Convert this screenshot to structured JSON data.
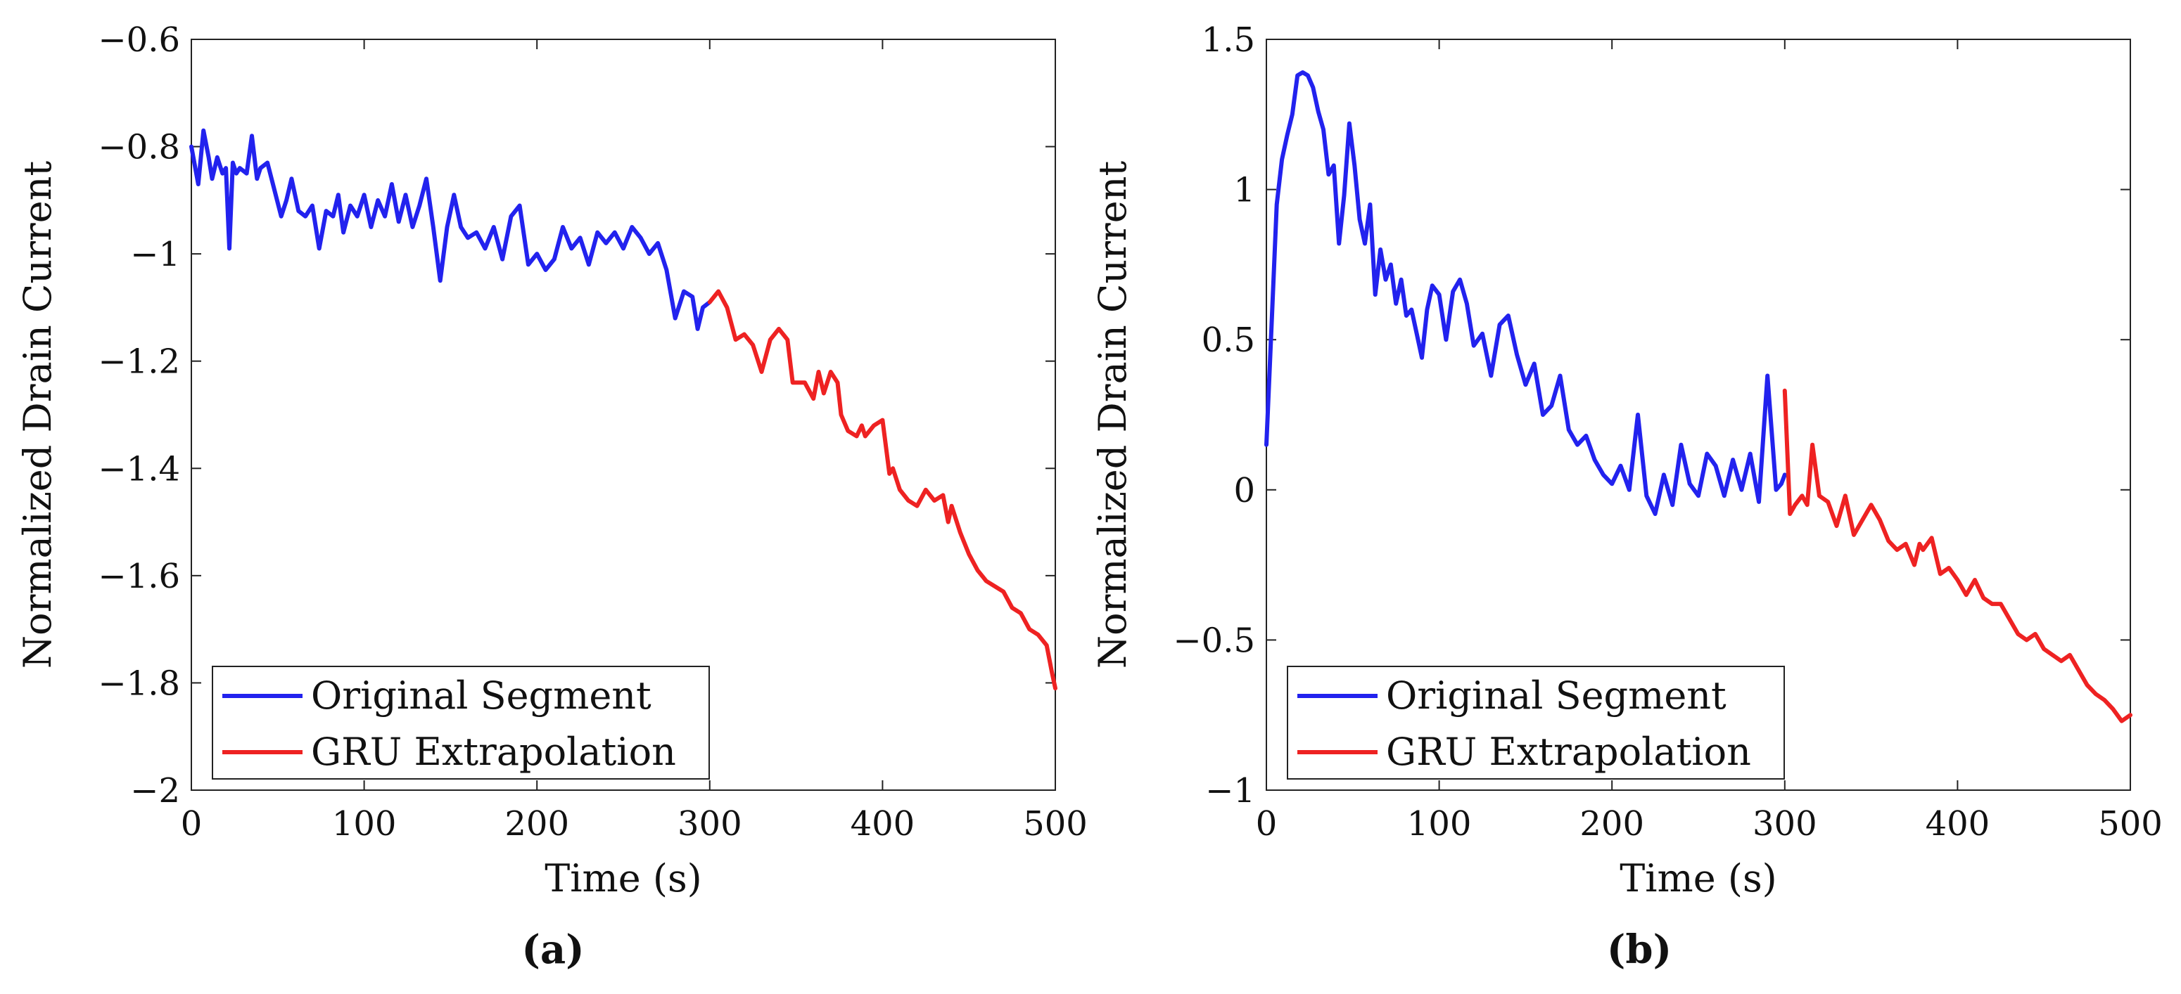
{
  "chart_data": [
    {
      "type": "line",
      "panel": "a",
      "caption": "(a)",
      "xlabel": "Time (s)",
      "ylabel": "Normalized Drain Current",
      "xlim": [
        0,
        500
      ],
      "ylim": [
        -2,
        -0.6
      ],
      "xticks": [
        0,
        100,
        200,
        300,
        400,
        500
      ],
      "yticks": [
        -2,
        -1.8,
        -1.6,
        -1.4,
        -1.2,
        -1,
        -0.8,
        -0.6
      ],
      "grid": false,
      "legend_position": "bottom-left",
      "series": [
        {
          "name": "Original Segment",
          "color": "#2222ee",
          "x": [
            0,
            4,
            7,
            10,
            12,
            15,
            18,
            20,
            22,
            24,
            26,
            28,
            32,
            35,
            38,
            40,
            44,
            48,
            52,
            55,
            58,
            62,
            66,
            70,
            74,
            78,
            82,
            85,
            88,
            92,
            96,
            100,
            104,
            108,
            112,
            116,
            120,
            124,
            128,
            132,
            136,
            140,
            144,
            148,
            152,
            156,
            160,
            165,
            170,
            175,
            180,
            185,
            190,
            195,
            200,
            205,
            210,
            215,
            220,
            225,
            230,
            235,
            240,
            245,
            250,
            255,
            260,
            265,
            270,
            275,
            280,
            285,
            290,
            293,
            296,
            300
          ],
          "y": [
            -0.8,
            -0.87,
            -0.77,
            -0.82,
            -0.86,
            -0.82,
            -0.85,
            -0.84,
            -0.99,
            -0.83,
            -0.85,
            -0.84,
            -0.85,
            -0.78,
            -0.86,
            -0.84,
            -0.83,
            -0.88,
            -0.93,
            -0.9,
            -0.86,
            -0.92,
            -0.93,
            -0.91,
            -0.99,
            -0.92,
            -0.93,
            -0.89,
            -0.96,
            -0.91,
            -0.93,
            -0.89,
            -0.95,
            -0.9,
            -0.93,
            -0.87,
            -0.94,
            -0.89,
            -0.95,
            -0.91,
            -0.86,
            -0.95,
            -1.05,
            -0.95,
            -0.89,
            -0.95,
            -0.97,
            -0.96,
            -0.99,
            -0.95,
            -1.01,
            -0.93,
            -0.91,
            -1.02,
            -1.0,
            -1.03,
            -1.01,
            -0.95,
            -0.99,
            -0.97,
            -1.02,
            -0.96,
            -0.98,
            -0.96,
            -0.99,
            -0.95,
            -0.97,
            -1.0,
            -0.98,
            -1.03,
            -1.12,
            -1.07,
            -1.08,
            -1.14,
            -1.1,
            -1.09
          ]
        },
        {
          "name": "GRU Extrapolation",
          "color": "#ee2222",
          "x": [
            300,
            305,
            310,
            315,
            320,
            325,
            328,
            330,
            335,
            340,
            345,
            348,
            350,
            355,
            360,
            363,
            366,
            370,
            374,
            376,
            380,
            385,
            388,
            390,
            395,
            400,
            404,
            406,
            410,
            415,
            420,
            425,
            430,
            435,
            438,
            440,
            445,
            450,
            455,
            460,
            465,
            470,
            475,
            480,
            485,
            490,
            495,
            498,
            500
          ],
          "y": [
            -1.09,
            -1.07,
            -1.1,
            -1.16,
            -1.15,
            -1.17,
            -1.2,
            -1.22,
            -1.16,
            -1.14,
            -1.16,
            -1.24,
            -1.24,
            -1.24,
            -1.27,
            -1.22,
            -1.26,
            -1.22,
            -1.24,
            -1.3,
            -1.33,
            -1.34,
            -1.32,
            -1.34,
            -1.32,
            -1.31,
            -1.41,
            -1.4,
            -1.44,
            -1.46,
            -1.47,
            -1.44,
            -1.46,
            -1.45,
            -1.5,
            -1.47,
            -1.52,
            -1.56,
            -1.59,
            -1.61,
            -1.62,
            -1.63,
            -1.66,
            -1.67,
            -1.7,
            -1.71,
            -1.73,
            -1.78,
            -1.81
          ]
        }
      ]
    },
    {
      "type": "line",
      "panel": "b",
      "caption": "(b)",
      "xlabel": "Time (s)",
      "ylabel": "Normalized Drain Current",
      "xlim": [
        0,
        500
      ],
      "ylim": [
        -1,
        1.5
      ],
      "xticks": [
        0,
        100,
        200,
        300,
        400,
        500
      ],
      "yticks": [
        -1,
        -0.5,
        0,
        0.5,
        1,
        1.5
      ],
      "grid": false,
      "legend_position": "bottom-left",
      "series": [
        {
          "name": "Original Segment",
          "color": "#2222ee",
          "x": [
            0,
            3,
            6,
            9,
            12,
            15,
            18,
            21,
            24,
            27,
            30,
            33,
            36,
            39,
            42,
            45,
            48,
            51,
            54,
            57,
            60,
            63,
            66,
            69,
            72,
            75,
            78,
            81,
            84,
            87,
            90,
            93,
            96,
            100,
            104,
            108,
            112,
            116,
            120,
            125,
            130,
            135,
            140,
            145,
            150,
            155,
            160,
            165,
            170,
            175,
            180,
            185,
            190,
            195,
            200,
            205,
            210,
            215,
            220,
            225,
            230,
            235,
            240,
            245,
            250,
            255,
            260,
            265,
            270,
            275,
            280,
            285,
            290,
            295,
            298,
            300
          ],
          "y": [
            0.15,
            0.55,
            0.95,
            1.1,
            1.18,
            1.25,
            1.38,
            1.39,
            1.38,
            1.34,
            1.26,
            1.2,
            1.05,
            1.08,
            0.82,
            0.98,
            1.22,
            1.08,
            0.9,
            0.82,
            0.95,
            0.65,
            0.8,
            0.7,
            0.75,
            0.62,
            0.7,
            0.58,
            0.6,
            0.52,
            0.44,
            0.6,
            0.68,
            0.65,
            0.5,
            0.66,
            0.7,
            0.62,
            0.48,
            0.52,
            0.38,
            0.55,
            0.58,
            0.45,
            0.35,
            0.42,
            0.25,
            0.28,
            0.38,
            0.2,
            0.15,
            0.18,
            0.1,
            0.05,
            0.02,
            0.08,
            0.0,
            0.25,
            -0.02,
            -0.08,
            0.05,
            -0.05,
            0.15,
            0.02,
            -0.02,
            0.12,
            0.08,
            -0.02,
            0.1,
            0.0,
            0.12,
            -0.04,
            0.38,
            0.0,
            0.02,
            0.05
          ]
        },
        {
          "name": "GRU Extrapolation",
          "color": "#ee2222",
          "x": [
            300,
            303,
            306,
            310,
            313,
            316,
            320,
            325,
            330,
            335,
            340,
            345,
            350,
            355,
            360,
            365,
            370,
            375,
            378,
            380,
            385,
            390,
            395,
            400,
            405,
            410,
            415,
            420,
            425,
            430,
            435,
            440,
            445,
            450,
            455,
            460,
            465,
            470,
            475,
            480,
            485,
            490,
            495,
            500
          ],
          "y": [
            0.33,
            -0.08,
            -0.05,
            -0.02,
            -0.05,
            0.15,
            -0.02,
            -0.04,
            -0.12,
            -0.02,
            -0.15,
            -0.1,
            -0.05,
            -0.1,
            -0.17,
            -0.2,
            -0.18,
            -0.25,
            -0.18,
            -0.2,
            -0.16,
            -0.28,
            -0.26,
            -0.3,
            -0.35,
            -0.3,
            -0.36,
            -0.38,
            -0.38,
            -0.43,
            -0.48,
            -0.5,
            -0.48,
            -0.53,
            -0.55,
            -0.57,
            -0.55,
            -0.6,
            -0.65,
            -0.68,
            -0.7,
            -0.73,
            -0.77,
            -0.75
          ]
        }
      ]
    }
  ]
}
